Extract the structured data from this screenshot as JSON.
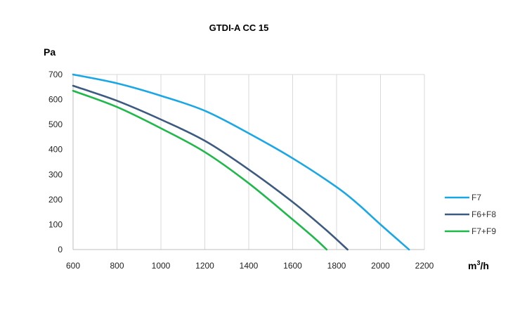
{
  "chart_data": {
    "type": "line",
    "title": "GTDI-A CC 15",
    "ylabel": "Pa",
    "xlabel": "m³/h",
    "xlabel_base": "m",
    "xlabel_sup": "3",
    "xlabel_tail": "/h",
    "xlim": [
      600,
      2200
    ],
    "ylim": [
      0,
      700
    ],
    "x_ticks": [
      600,
      800,
      1000,
      1200,
      1400,
      1600,
      1800,
      2000,
      2200
    ],
    "y_ticks": [
      0,
      100,
      200,
      300,
      400,
      500,
      600,
      700
    ],
    "grid": "vertical",
    "legend_position": "right",
    "series": [
      {
        "name": "F7",
        "color": "#1aa7e6",
        "points": [
          [
            600,
            700
          ],
          [
            800,
            665
          ],
          [
            1000,
            615
          ],
          [
            1200,
            555
          ],
          [
            1400,
            465
          ],
          [
            1600,
            365
          ],
          [
            1800,
            250
          ],
          [
            1900,
            180
          ],
          [
            2000,
            100
          ],
          [
            2130,
            0
          ]
        ]
      },
      {
        "name": "F6+F8",
        "color": "#3d5a80",
        "points": [
          [
            600,
            655
          ],
          [
            800,
            595
          ],
          [
            1000,
            520
          ],
          [
            1200,
            435
          ],
          [
            1400,
            320
          ],
          [
            1600,
            190
          ],
          [
            1750,
            80
          ],
          [
            1850,
            0
          ]
        ]
      },
      {
        "name": "F7+F9",
        "color": "#1fb84a",
        "points": [
          [
            600,
            635
          ],
          [
            800,
            570
          ],
          [
            1000,
            485
          ],
          [
            1200,
            390
          ],
          [
            1400,
            265
          ],
          [
            1600,
            120
          ],
          [
            1700,
            45
          ],
          [
            1755,
            0
          ]
        ]
      }
    ]
  }
}
